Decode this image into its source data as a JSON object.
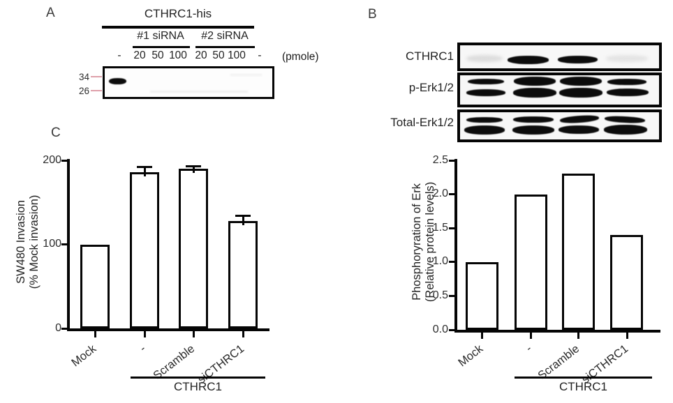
{
  "figure": {
    "panel_a_label": "A",
    "panel_b_label": "B",
    "panel_c_label": "C"
  },
  "panel_a": {
    "title": "CTHRC1-his",
    "sirna_groups": [
      "#1 siRNA",
      "#2 siRNA"
    ],
    "dose_labels": [
      "-",
      "20",
      "50",
      "100",
      "20",
      "50",
      "100",
      "-"
    ],
    "dose_unit": "(pmole)",
    "mw_markers": [
      "34",
      "26"
    ],
    "marker_tick_color": "#dfa0aa",
    "band_pattern": [
      "strong band in first lane only",
      "no detectable bands in siRNA-treated lanes"
    ]
  },
  "panel_b": {
    "blots": [
      {
        "label": "CTHRC1",
        "band_pattern": [
          "faint",
          "strong",
          "strong",
          "faint"
        ]
      },
      {
        "label": "p-Erk1/2",
        "band_pattern": [
          "moderate doublet",
          "strong doublet",
          "strong doublet",
          "moderate doublet"
        ]
      },
      {
        "label": "Total-Erk1/2",
        "band_pattern": [
          "strong doublet",
          "strong doublet",
          "strong doublet",
          "strong doublet"
        ]
      }
    ]
  },
  "chart_data": [
    {
      "panel": "C",
      "type": "bar",
      "categories": [
        "Mock",
        "-",
        "Scramble",
        "siCTHRC1"
      ],
      "values": [
        100,
        186,
        190,
        128
      ],
      "errors": [
        0,
        7,
        4,
        7
      ],
      "ylabel": "SW480 Invasion (% Mock invasion)",
      "ylabel_lines": [
        "SW480 Invasion",
        "(% Mock invasion)"
      ],
      "ytick_labels": [
        "200",
        "100",
        "0"
      ],
      "ylim": [
        0,
        200
      ],
      "grid": false,
      "legend": false,
      "group_label": "CTHRC1",
      "group_spans_categories": [
        "-",
        "Scramble",
        "siCTHRC1"
      ]
    },
    {
      "panel": "B",
      "type": "bar",
      "categories": [
        "Mock",
        "-",
        "Scramble",
        "siCTHRC1"
      ],
      "values": [
        1.0,
        2.0,
        2.3,
        1.4
      ],
      "errors": [
        0,
        0,
        0,
        0
      ],
      "ylabel": "Phosphoryration of Erk (Relative protein levels)",
      "ylabel_lines": [
        "Phosphoryration of Erk",
        "(Relative protein levels)"
      ],
      "ytick_labels": [
        "2.5",
        "2.0",
        "1.5",
        "1.0",
        "0.5",
        "0.0"
      ],
      "ylim": [
        0,
        2.5
      ],
      "grid": false,
      "legend": false,
      "group_label": "CTHRC1",
      "group_spans_categories": [
        "-",
        "Scramble",
        "siCTHRC1"
      ]
    }
  ]
}
